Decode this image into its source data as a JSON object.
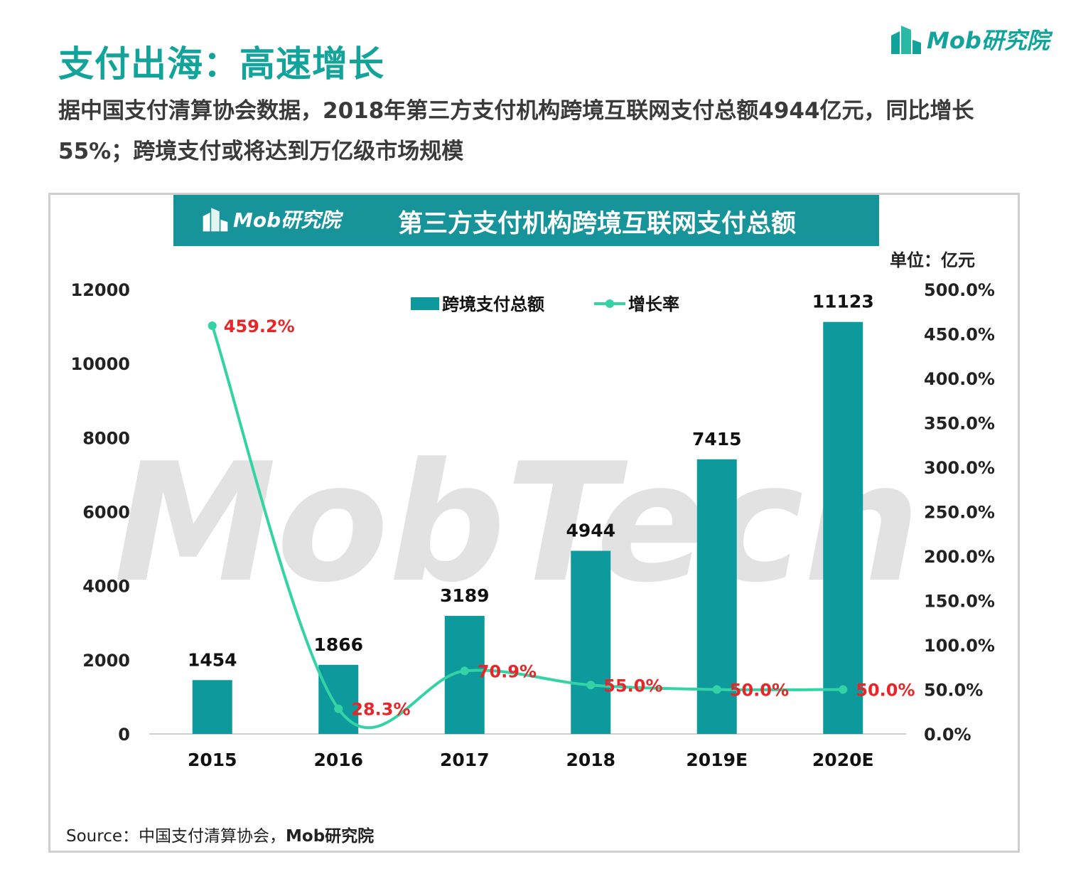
{
  "page": {
    "title": "支付出海：高速增长",
    "subtitle": "据中国支付清算协会数据，2018年第三方支付机构跨境互联网支付总额4944亿元，同比增长55%；跨境支付或将达到万亿级市场规模",
    "brand": "Mob研究院",
    "source_prefix": "Source：中国支付清算协会，",
    "source_brand": "Mob研究院"
  },
  "colors": {
    "accent": "#12a39b",
    "bar": "#0e9a9c",
    "banner": "#17949a",
    "line": "#33d3a6",
    "rate_label": "#e8262a",
    "watermark": "#d8d8d8"
  },
  "watermark": "MobTech",
  "chart_data": {
    "type": "bar",
    "title": "第三方支付机构跨境互联网支付总额",
    "unit": "单位：亿元",
    "categories": [
      "2015",
      "2016",
      "2017",
      "2018",
      "2019E",
      "2020E"
    ],
    "series": [
      {
        "name": "跨境支付总额",
        "type": "bar",
        "axis": "left",
        "values": [
          1454,
          1866,
          3189,
          4944,
          7415,
          11123
        ],
        "labels": [
          "1454",
          "1866",
          "3189",
          "4944",
          "7415",
          "11123"
        ]
      },
      {
        "name": "增长率",
        "type": "line",
        "axis": "right",
        "smooth": true,
        "values": [
          459.2,
          28.3,
          70.9,
          55.0,
          50.0,
          50.0
        ],
        "labels": [
          "459.2%",
          "28.3%",
          "70.9%",
          "55.0%",
          "50.0%",
          "50.0%"
        ]
      }
    ],
    "y_left": {
      "range": [
        0,
        12000
      ],
      "ticks": [
        "0",
        "2000",
        "4000",
        "6000",
        "8000",
        "10000",
        "12000"
      ]
    },
    "y_right": {
      "range": [
        0,
        500
      ],
      "ticks": [
        "0.0%",
        "50.0%",
        "100.0%",
        "150.0%",
        "200.0%",
        "250.0%",
        "300.0%",
        "350.0%",
        "400.0%",
        "450.0%",
        "500.0%"
      ]
    },
    "grid": false,
    "legend": "top-center"
  }
}
